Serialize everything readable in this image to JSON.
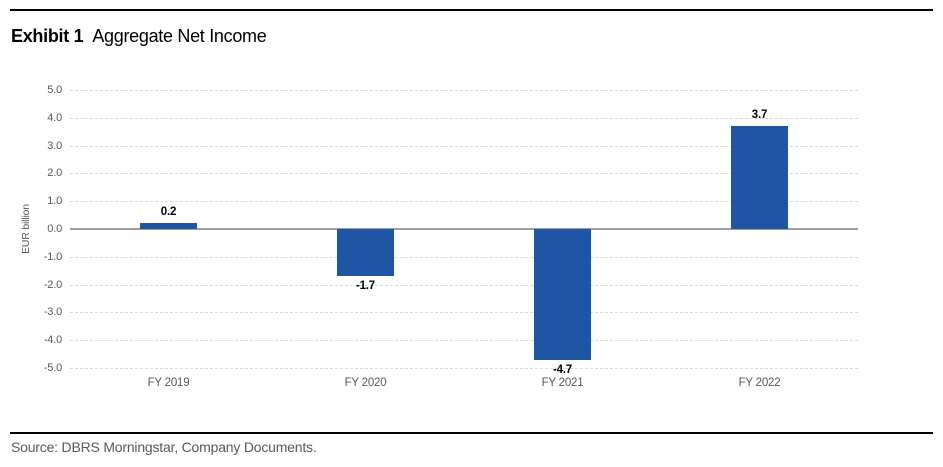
{
  "header": {
    "exhibit_label": "Exhibit 1",
    "title": "Aggregate Net Income"
  },
  "footer": {
    "source": "Source: DBRS Morningstar, Company Documents."
  },
  "colors": {
    "bar": "#1f55a5",
    "gridline": "#d9d9d9",
    "zero_line": "#9e9e9e",
    "axis_text": "#595959",
    "data_label_text": "#000000"
  },
  "chart_data": {
    "type": "bar",
    "title": "Aggregate Net Income",
    "categories": [
      "FY 2019",
      "FY 2020",
      "FY 2021",
      "FY 2022"
    ],
    "values": [
      0.2,
      -1.7,
      -4.7,
      3.7
    ],
    "data_labels": [
      "0.2",
      "-1.7",
      "-4.7",
      "3.7"
    ],
    "xlabel": "",
    "ylabel": "EUR billion",
    "ylim": [
      -5.0,
      5.0
    ],
    "ytick_step": 1.0,
    "ytick_labels": [
      "5.0",
      "4.0",
      "3.0",
      "2.0",
      "1.0",
      "0.0",
      "-1.0",
      "-2.0",
      "-3.0",
      "-4.0",
      "-5.0"
    ],
    "grid": true,
    "legend": false
  }
}
